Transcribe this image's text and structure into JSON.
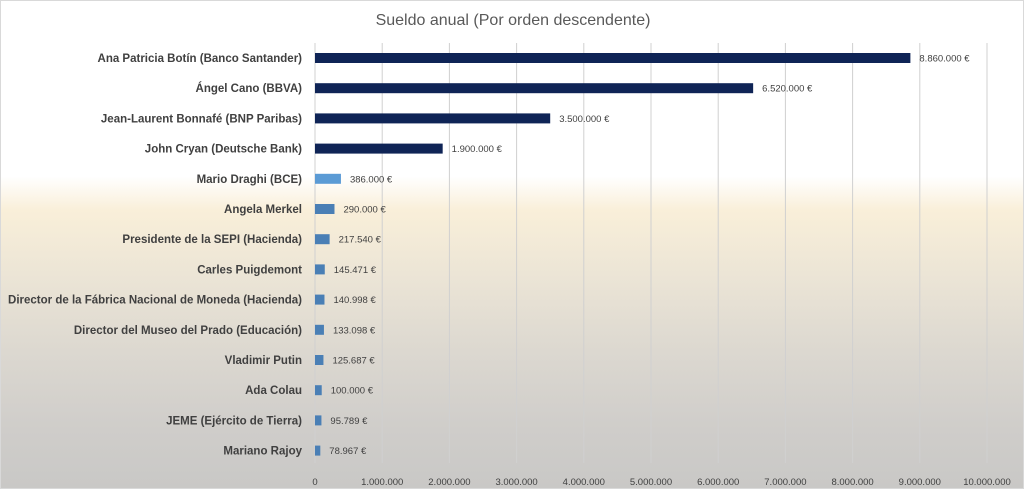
{
  "chart_data": {
    "type": "bar",
    "orientation": "horizontal",
    "title": "Sueldo anual (Por orden descendente)",
    "xlabel": "",
    "ylabel": "",
    "xlim": [
      0,
      10000000
    ],
    "grid": true,
    "legend": "none",
    "categories": [
      "Ana Patricia Botín (Banco Santander)",
      "Ángel Cano (BBVA)",
      "Jean-Laurent Bonnafé (BNP Paribas)",
      "John Cryan (Deutsche Bank)",
      "Mario Draghi (BCE)",
      "Angela Merkel",
      "Presidente de la SEPI (Hacienda)",
      "Carles Puigdemont",
      "Director de la Fábrica Nacional de Moneda (Hacienda)",
      "Director del Museo del Prado (Educación)",
      "Vladimir Putin",
      "Ada Colau",
      "JEME (Ejército de Tierra)",
      "Mariano Rajoy"
    ],
    "values": [
      8860000,
      6520000,
      3500000,
      1900000,
      386000,
      290000,
      217540,
      145471,
      140998,
      133098,
      125687,
      100000,
      95789,
      78967
    ],
    "value_labels": [
      "8.860.000 €",
      "6.520.000 €",
      "3.500.000 €",
      "1.900.000 €",
      "386.000 €",
      "290.000 €",
      "217.540 €",
      "145.471 €",
      "140.998 €",
      "133.098 €",
      "125.687 €",
      "100.000 €",
      "95.789 €",
      "78.967 €"
    ],
    "bar_colors": [
      "#0f2456",
      "#0f2456",
      "#0f2456",
      "#0f2456",
      "#5b9bd5",
      "#4a7fb5",
      "#4a7fb5",
      "#4a7fb5",
      "#4a7fb5",
      "#4a7fb5",
      "#4a7fb5",
      "#4a7fb5",
      "#4a7fb5",
      "#4a7fb5"
    ],
    "ticks": [
      0,
      1000000,
      2000000,
      3000000,
      4000000,
      5000000,
      6000000,
      7000000,
      8000000,
      9000000,
      10000000
    ],
    "tick_labels": [
      "0",
      "1.000.000",
      "2.000.000",
      "3.000.000",
      "4.000.000",
      "5.000.000",
      "6.000.000",
      "7.000.000",
      "8.000.000",
      "9.000.000",
      "10.000.000"
    ]
  }
}
